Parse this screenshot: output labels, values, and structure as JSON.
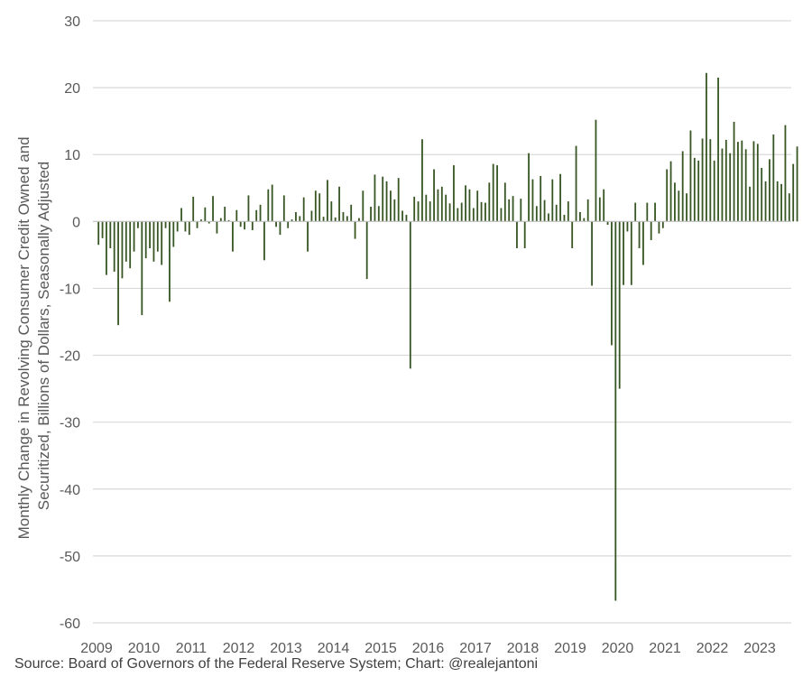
{
  "chart_data": {
    "type": "bar",
    "title": "",
    "ylabel_lines": [
      "Monthly Change in Revolving Consumer Credit Owned and",
      "Securitized, Billions of Dollars, Seasonally Adjusted"
    ],
    "xlabel": "",
    "ylim": [
      -60,
      30
    ],
    "yticks": [
      30,
      20,
      10,
      0,
      -10,
      -20,
      -30,
      -40,
      -50,
      -60
    ],
    "xtick_labels": [
      "2009",
      "2010",
      "2011",
      "2012",
      "2013",
      "2014",
      "2015",
      "2016",
      "2017",
      "2018",
      "2019",
      "2020",
      "2021",
      "2022",
      "2023"
    ],
    "x_start": "2009-01",
    "grid": true,
    "bar_color": "#375623",
    "values": [
      -3.5,
      -2.5,
      -8.0,
      -4.0,
      -7.5,
      -15.5,
      -8.5,
      -6.0,
      -7.0,
      -4.5,
      -1.0,
      -14.0,
      -5.5,
      -4.0,
      -6.0,
      -4.5,
      -6.5,
      -1.0,
      -12.0,
      -3.8,
      -1.5,
      2.0,
      -1.5,
      -2.0,
      3.7,
      -1.0,
      0.3,
      2.1,
      -0.3,
      3.8,
      -1.8,
      0.5,
      2.2,
      0.2,
      -4.5,
      1.7,
      -0.8,
      -1.2,
      3.9,
      -1.3,
      1.7,
      2.5,
      -5.8,
      4.8,
      5.5,
      -0.8,
      -2.0,
      3.9,
      -1.0,
      0.3,
      1.4,
      0.8,
      3.6,
      -4.5,
      1.6,
      4.6,
      4.2,
      0.7,
      6.2,
      3.0,
      0.6,
      5.2,
      1.4,
      0.8,
      2.5,
      -2.6,
      0.5,
      4.6,
      -8.6,
      2.2,
      7.0,
      2.3,
      6.7,
      6.0,
      4.6,
      3.3,
      6.5,
      1.6,
      1.0,
      -22.0,
      3.7,
      3.0,
      12.3,
      4.0,
      3.0,
      7.8,
      4.8,
      5.2,
      4.0,
      2.7,
      8.4,
      2.0,
      2.8,
      5.4,
      4.8,
      2.0,
      4.6,
      2.9,
      2.8,
      5.8,
      8.6,
      8.4,
      2.0,
      5.8,
      3.3,
      3.8,
      -4.0,
      3.4,
      -4.0,
      10.2,
      6.3,
      2.3,
      6.8,
      3.2,
      1.2,
      6.3,
      2.5,
      7.1,
      1.0,
      3.0,
      -4.0,
      11.3,
      1.4,
      0.5,
      3.3,
      -9.6,
      15.2,
      3.6,
      4.8,
      -0.5,
      -18.5,
      -56.7,
      -25.0,
      -9.5,
      -1.5,
      -9.5,
      2.8,
      -4.0,
      -6.5,
      2.8,
      -2.8,
      2.8,
      -1.8,
      -1.0,
      7.8,
      9.0,
      5.8,
      4.6,
      10.5,
      4.2,
      13.6,
      9.5,
      9.1,
      12.4,
      22.2,
      12.3,
      9.1,
      21.5,
      10.9,
      12.2,
      10.2,
      14.9,
      11.9,
      12.1,
      10.8,
      5.2,
      12.0,
      11.6,
      8.0,
      6.0,
      9.3,
      13.0,
      6.0,
      5.6,
      14.4,
      4.2,
      8.6,
      11.2
    ]
  },
  "source_text": "Source: Board of Governors of the Federal Reserve System; Chart: @realejantoni"
}
